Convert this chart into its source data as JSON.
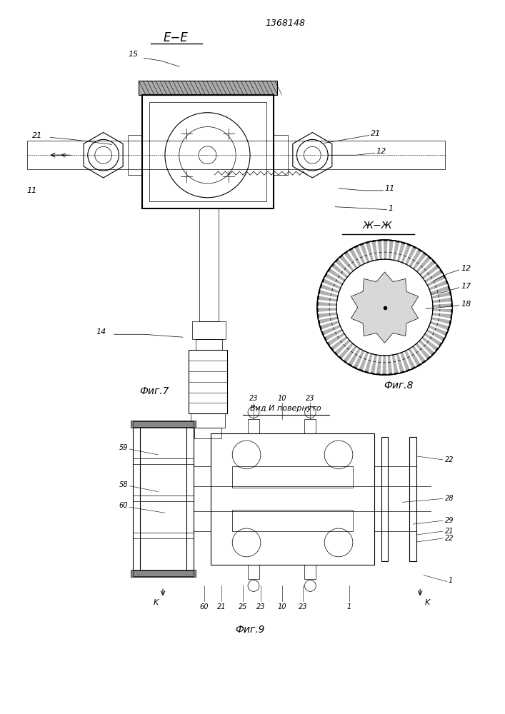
{
  "patent_number": "1368148",
  "background_color": "#ffffff",
  "line_color": "#000000",
  "fig7_label": "Фиг.7",
  "fig8_label": "Фиг.8",
  "fig9_label": "Фиг.9",
  "section_ee": "E−E",
  "section_zhzh": "Ж−Ж",
  "view_label": "Вид И повернуто"
}
